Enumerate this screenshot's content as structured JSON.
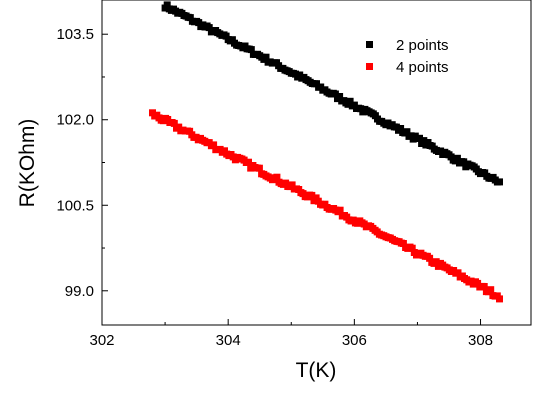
{
  "chart_data": {
    "type": "scatter",
    "title": "",
    "xlabel": "T(K)",
    "ylabel": "R(KOhm)",
    "xlim": [
      302,
      308.8
    ],
    "ylim": [
      98.4,
      104.1
    ],
    "xticks": [
      302,
      304,
      306,
      308
    ],
    "xtick_labels": [
      "302",
      "304",
      "306",
      "308"
    ],
    "yticks": [
      99.0,
      100.5,
      102.0,
      103.5
    ],
    "ytick_labels": [
      "99.0",
      "100.5",
      "102.0",
      "103.5"
    ],
    "grid": false,
    "legend_position": "top-right",
    "series": [
      {
        "name": "2 points",
        "color": "#000000",
        "marker": "square",
        "x_range": [
          303.0,
          308.3
        ],
        "y_range": [
          104.0,
          100.9
        ],
        "noise": 0.04
      },
      {
        "name": "4 points",
        "color": "#ff0000",
        "marker": "square",
        "x_range": [
          302.8,
          308.3
        ],
        "y_range": [
          102.1,
          98.9
        ],
        "noise": 0.045
      }
    ]
  }
}
